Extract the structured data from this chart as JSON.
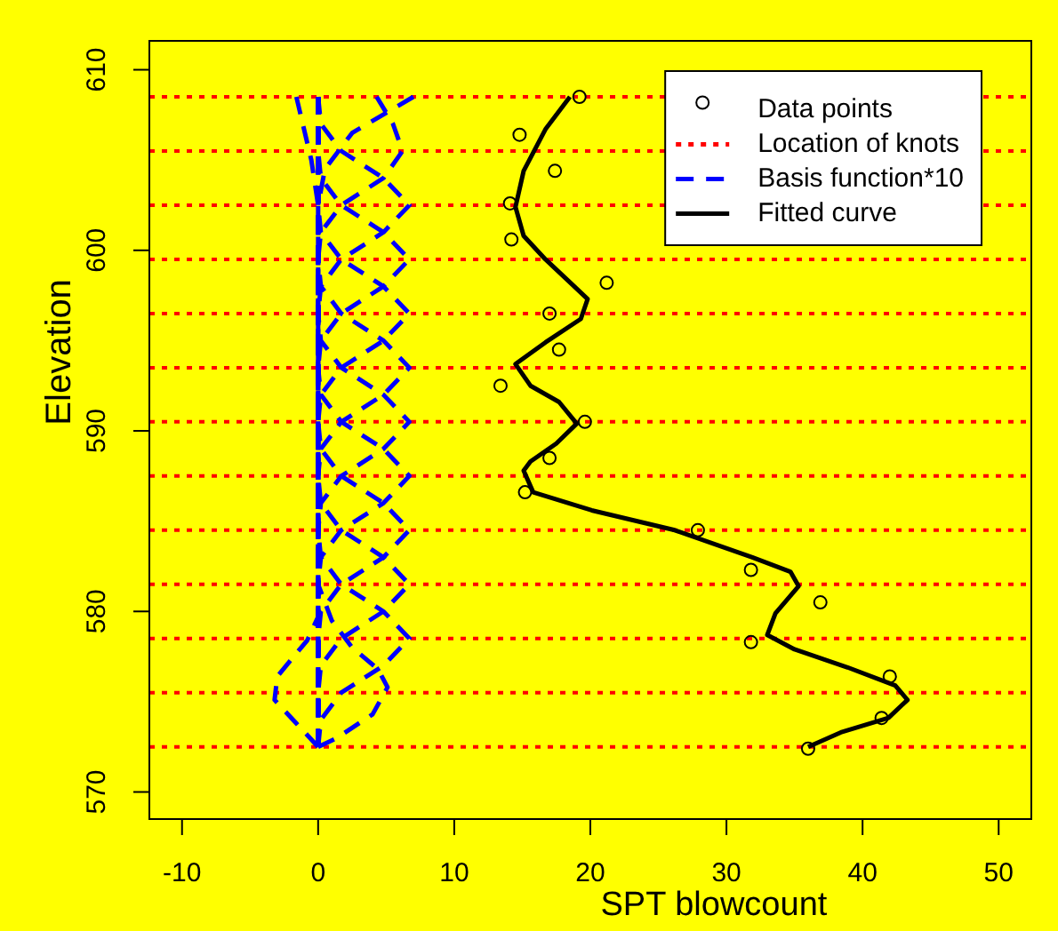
{
  "chart_data": {
    "type": "line",
    "xlabel": "SPT blowcount",
    "ylabel": "Elevation",
    "xlim": [
      -12.4,
      52.4
    ],
    "ylim": [
      568.5,
      611.6
    ],
    "xticks": [
      -10,
      0,
      10,
      20,
      30,
      40,
      50
    ],
    "yticks": [
      570,
      580,
      590,
      600,
      610
    ],
    "legend": "top right",
    "ref_lines": [
      {
        "axis": "y",
        "value": 572.5,
        "label": "Location of knots",
        "color": "#ff0000",
        "line_style": "dotted"
      },
      {
        "axis": "y",
        "value": 575.5,
        "color": "#ff0000",
        "line_style": "dotted"
      },
      {
        "axis": "y",
        "value": 578.5,
        "color": "#ff0000",
        "line_style": "dotted"
      },
      {
        "axis": "y",
        "value": 581.5,
        "color": "#ff0000",
        "line_style": "dotted"
      },
      {
        "axis": "y",
        "value": 584.5,
        "color": "#ff0000",
        "line_style": "dotted"
      },
      {
        "axis": "y",
        "value": 587.5,
        "color": "#ff0000",
        "line_style": "dotted"
      },
      {
        "axis": "y",
        "value": 590.5,
        "color": "#ff0000",
        "line_style": "dotted"
      },
      {
        "axis": "y",
        "value": 593.5,
        "color": "#ff0000",
        "line_style": "dotted"
      },
      {
        "axis": "y",
        "value": 596.5,
        "color": "#ff0000",
        "line_style": "dotted"
      },
      {
        "axis": "y",
        "value": 599.5,
        "color": "#ff0000",
        "line_style": "dotted"
      },
      {
        "axis": "y",
        "value": 602.5,
        "color": "#ff0000",
        "line_style": "dotted"
      },
      {
        "axis": "y",
        "value": 605.5,
        "color": "#ff0000",
        "line_style": "dotted"
      },
      {
        "axis": "y",
        "value": 608.5,
        "color": "#ff0000",
        "line_style": "dotted"
      }
    ],
    "series": [
      {
        "type": "scatter",
        "name": "Data points",
        "color": "#000000",
        "marker": "circle",
        "x": [
          19.2,
          14.8,
          17.4,
          14.1,
          14.2,
          21.2,
          17.0,
          17.7,
          13.4,
          19.6,
          17.0,
          15.2,
          27.9,
          31.8,
          36.9,
          31.8,
          42.0,
          41.4,
          36.0
        ],
        "values": [
          608.5,
          606.4,
          604.4,
          602.6,
          600.6,
          598.2,
          596.5,
          594.5,
          592.5,
          590.5,
          588.5,
          586.6,
          584.5,
          582.3,
          580.5,
          578.3,
          576.4,
          574.1,
          572.4
        ]
      },
      {
        "type": "line",
        "name": "Basis function*10",
        "color": "#0000ff",
        "line_style": "dashed",
        "marker": "none",
        "x": [
          0,
          -1.6,
          -3.2,
          -3.0,
          -1.9,
          -0.8,
          0,
          0
        ],
        "values": [
          572.5,
          573.8,
          575.1,
          576.4,
          577.4,
          578.4,
          579.7,
          608.5
        ]
      },
      {
        "type": "line",
        "color": "#0000ff",
        "line_style": "dashed",
        "marker": "none",
        "x": [
          0,
          1.4,
          4.0,
          5.1,
          4.4,
          2.5,
          1.0,
          0,
          0
        ],
        "values": [
          572.5,
          573.0,
          574.3,
          575.8,
          576.8,
          578.0,
          579.5,
          581.5,
          608.5
        ]
      },
      {
        "type": "line",
        "color": "#0000ff",
        "line_style": "dashed",
        "marker": "none",
        "x": [
          0,
          0.2,
          1.7,
          4.8,
          6.7,
          4.8,
          1.7,
          0.2,
          0,
          0
        ],
        "values": [
          572.5,
          574,
          575.5,
          577,
          578.5,
          580,
          581.5,
          583,
          584.5,
          608.5
        ]
      },
      {
        "type": "line",
        "color": "#0000ff",
        "line_style": "dashed",
        "marker": "none",
        "x": [
          0,
          0,
          0.2,
          1.7,
          4.8,
          6.7,
          4.8,
          1.7,
          0.2,
          0,
          0
        ],
        "values": [
          572.5,
          575.5,
          577,
          578.5,
          580,
          581.5,
          583,
          584.5,
          586,
          587.5,
          608.5
        ]
      },
      {
        "type": "line",
        "color": "#0000ff",
        "line_style": "dashed",
        "marker": "none",
        "x": [
          0,
          0,
          0.2,
          1.7,
          4.8,
          6.7,
          4.8,
          1.7,
          0.2,
          0,
          0
        ],
        "values": [
          572.5,
          578.5,
          580,
          581.5,
          583,
          584.5,
          586,
          587.5,
          589,
          590.5,
          608.5
        ]
      },
      {
        "type": "line",
        "color": "#0000ff",
        "line_style": "dashed",
        "marker": "none",
        "x": [
          0,
          0,
          0.2,
          1.7,
          4.8,
          6.7,
          4.8,
          1.7,
          0.2,
          0,
          0
        ],
        "values": [
          572.5,
          581.5,
          583,
          584.5,
          586,
          587.5,
          589,
          590.5,
          592,
          593.5,
          608.5
        ]
      },
      {
        "type": "line",
        "color": "#0000ff",
        "line_style": "dashed",
        "marker": "none",
        "x": [
          0,
          0,
          0.2,
          1.7,
          4.8,
          6.7,
          4.8,
          1.7,
          0.2,
          0,
          0
        ],
        "values": [
          572.5,
          584.5,
          586,
          587.5,
          589,
          590.5,
          592,
          593.5,
          595,
          596.5,
          608.5
        ]
      },
      {
        "type": "line",
        "color": "#0000ff",
        "line_style": "dashed",
        "marker": "none",
        "x": [
          0,
          0,
          0.2,
          1.7,
          4.8,
          6.7,
          4.8,
          1.7,
          0.2,
          0,
          0
        ],
        "values": [
          572.5,
          587.5,
          589,
          590.5,
          592,
          593.5,
          595,
          596.5,
          598,
          599.5,
          608.5
        ]
      },
      {
        "type": "line",
        "color": "#0000ff",
        "line_style": "dashed",
        "marker": "none",
        "x": [
          0,
          0,
          0.2,
          1.7,
          4.8,
          6.7,
          4.8,
          1.7,
          0.2,
          0,
          0
        ],
        "values": [
          572.5,
          590.5,
          592,
          593.5,
          595,
          596.5,
          598,
          599.5,
          601,
          602.5,
          608.5
        ]
      },
      {
        "type": "line",
        "color": "#0000ff",
        "line_style": "dashed",
        "marker": "none",
        "x": [
          0,
          0,
          0.2,
          1.7,
          4.8,
          6.7,
          4.8,
          1.7,
          0.2,
          0,
          0
        ],
        "values": [
          572.5,
          593.5,
          595,
          596.5,
          598,
          599.5,
          601,
          602.5,
          604,
          605.5,
          608.5
        ]
      },
      {
        "type": "line",
        "color": "#0000ff",
        "line_style": "dashed",
        "marker": "none",
        "x": [
          0,
          0,
          0.2,
          1.7,
          4.8,
          6.7,
          4.8,
          1.7,
          0.2,
          0
        ],
        "values": [
          572.5,
          596.5,
          598,
          599.5,
          601,
          602.5,
          604,
          605.5,
          607,
          608.5
        ]
      },
      {
        "type": "line",
        "color": "#0000ff",
        "line_style": "dashed",
        "marker": "none",
        "x": [
          0,
          0,
          0.2,
          1.7,
          4.8,
          6.2,
          5.5,
          4.3
        ],
        "values": [
          572.5,
          599.5,
          601,
          602.5,
          604,
          605.5,
          607,
          608.5
        ]
      },
      {
        "type": "line",
        "color": "#0000ff",
        "line_style": "dashed",
        "marker": "none",
        "x": [
          0,
          0,
          0.5,
          2.5,
          7.0
        ],
        "values": [
          572.5,
          602.5,
          604.5,
          606.5,
          608.5
        ]
      },
      {
        "type": "line",
        "color": "#0000ff",
        "line_style": "dashed",
        "marker": "none",
        "x": [
          0,
          0,
          -0.5,
          -1.6
        ],
        "values": [
          572.5,
          602.5,
          605,
          608.5
        ]
      },
      {
        "type": "line",
        "name": "Fitted curve",
        "color": "#000000",
        "line_style": "solid",
        "marker": "none",
        "x": [
          18.5,
          16.7,
          15.1,
          14.5,
          15.1,
          16.7,
          18.4,
          19.8,
          19.3,
          16.7,
          14.5,
          15.6,
          17.7,
          19.0,
          17.5,
          15.6,
          15.1,
          15.8,
          20.1,
          26.2,
          31.9,
          34.7,
          35.3,
          33.6,
          33.0,
          35.0,
          38.9,
          42.4,
          43.3,
          41.9,
          38.4,
          36.0
        ],
        "values": [
          608.5,
          606.7,
          604.4,
          602.4,
          600.8,
          599.5,
          598.3,
          597.3,
          596.2,
          594.9,
          593.7,
          592.5,
          591.6,
          590.4,
          589.3,
          588.3,
          587.8,
          586.6,
          585.6,
          584.5,
          583.0,
          582.2,
          581.4,
          579.9,
          578.7,
          577.9,
          576.9,
          575.9,
          575.1,
          574.1,
          573.3,
          572.5
        ]
      }
    ]
  }
}
